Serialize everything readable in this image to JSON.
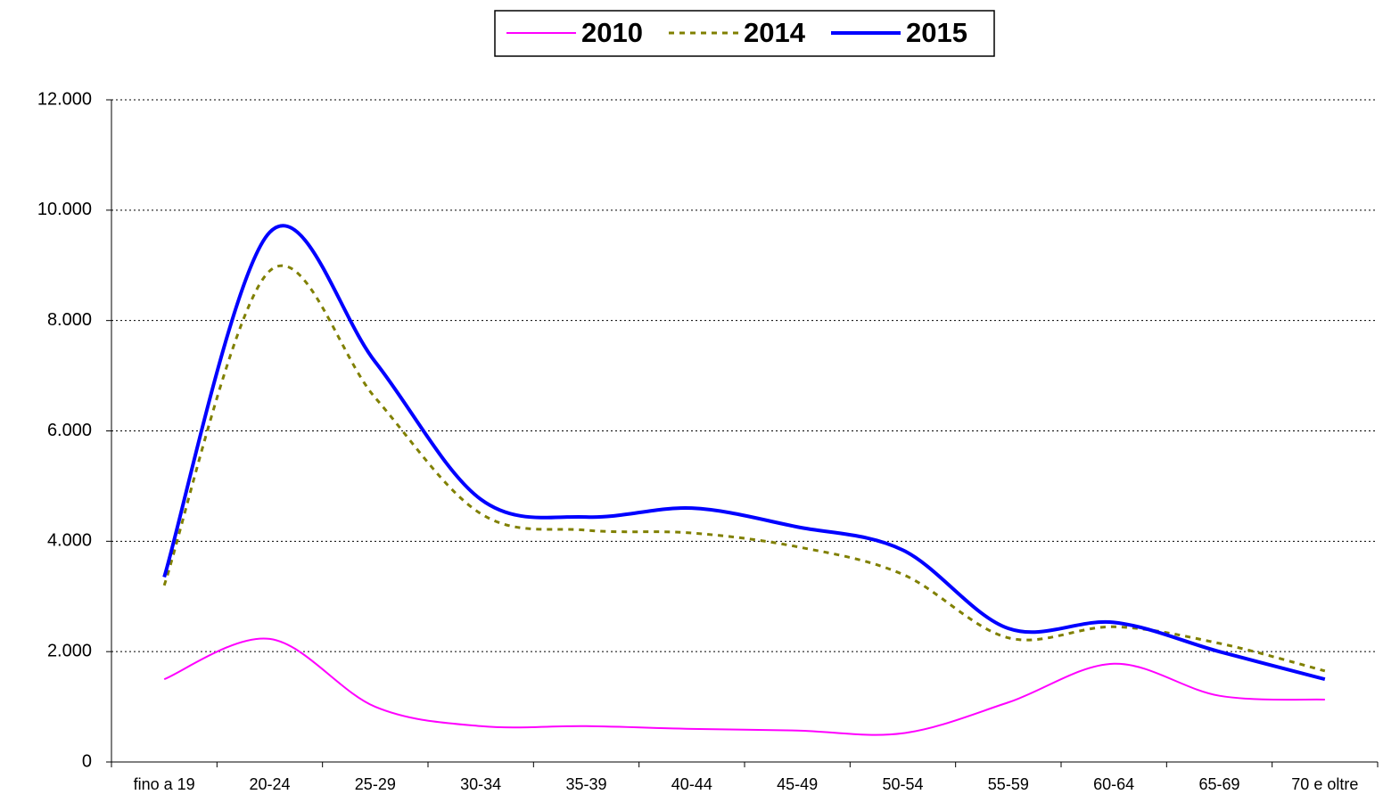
{
  "chart_data": {
    "type": "line",
    "categories": [
      "fino a 19",
      "20-24",
      "25-29",
      "30-34",
      "35-39",
      "40-44",
      "45-49",
      "50-54",
      "55-59",
      "60-64",
      "65-69",
      "70 e oltre"
    ],
    "series": [
      {
        "name": "2010",
        "color": "#ff00ff",
        "dash": "solid",
        "width": 2,
        "values": [
          1500,
          2230,
          1000,
          650,
          650,
          600,
          570,
          520,
          1080,
          1780,
          1200,
          1130
        ]
      },
      {
        "name": "2014",
        "color": "#808000",
        "dash": "dashed",
        "width": 3,
        "values": [
          3200,
          8900,
          6600,
          4500,
          4200,
          4150,
          3900,
          3400,
          2250,
          2450,
          2150,
          1650
        ]
      },
      {
        "name": "2015",
        "color": "#0000ff",
        "dash": "solid",
        "width": 4,
        "values": [
          3350,
          9600,
          7250,
          4760,
          4440,
          4600,
          4260,
          3840,
          2420,
          2530,
          2000,
          1500
        ]
      }
    ],
    "ylim": [
      0,
      12000
    ],
    "yticks": [
      0,
      {
        "value": 2000,
        "label": "2.000"
      },
      {
        "value": 4000,
        "label": "4.000"
      },
      {
        "value": 6000,
        "label": "6.000"
      },
      {
        "value": 8000,
        "label": "8.000"
      },
      {
        "value": 10000,
        "label": "10.000"
      },
      {
        "value": 12000,
        "label": "12.000"
      }
    ],
    "grid": true,
    "legend": "top"
  }
}
